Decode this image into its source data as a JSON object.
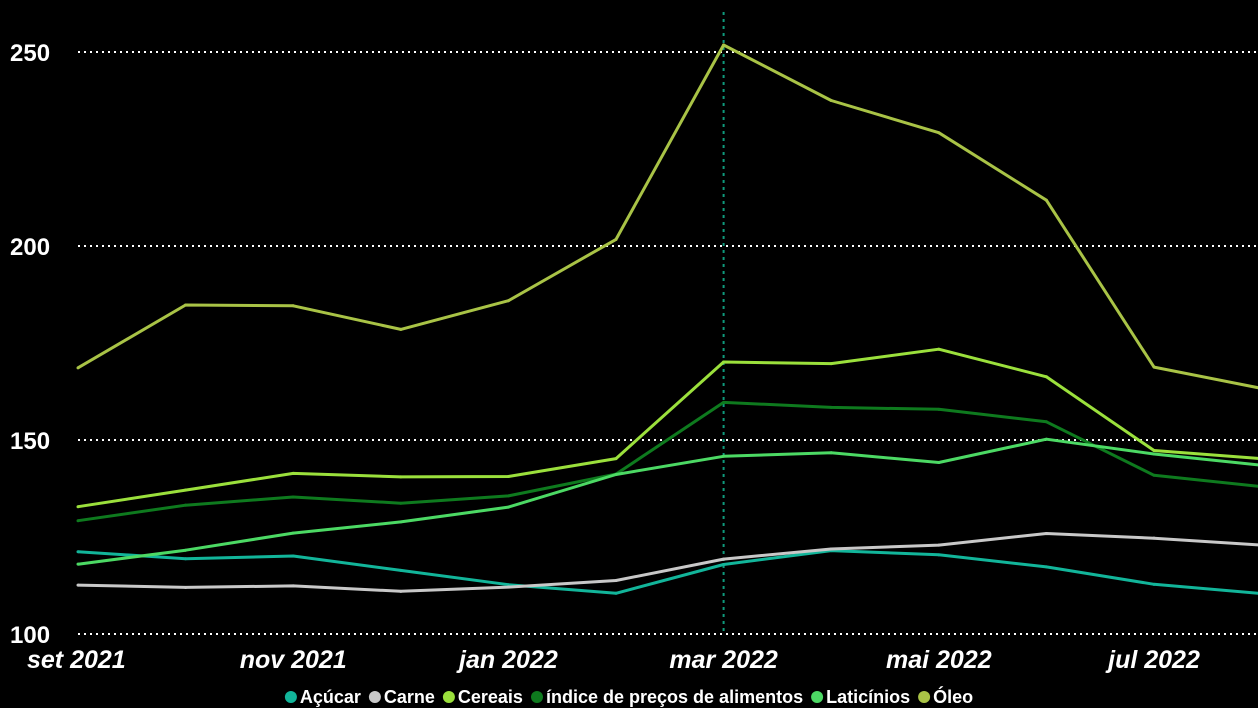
{
  "chart_data": {
    "type": "line",
    "x": [
      "set 2021",
      "out 2021",
      "nov 2021",
      "dez 2021",
      "jan 2022",
      "fev 2022",
      "mar 2022",
      "abr 2022",
      "mai 2022",
      "jun 2022",
      "jul 2022",
      "ago 2022"
    ],
    "x_tick_labels": [
      "set 2021",
      "nov 2021",
      "jan 2022",
      "mar 2022",
      "mai 2022",
      "jul 2022"
    ],
    "y_ticks": [
      100,
      150,
      200,
      250
    ],
    "ylim": [
      100,
      252
    ],
    "grid": "horizontal dotted",
    "reference_line": "mar 2022",
    "legend_position": "bottom",
    "series": [
      {
        "name": "Açúcar",
        "color": "#12b59a",
        "values": [
          121.2,
          119.4,
          120.1,
          116.4,
          112.7,
          110.5,
          117.9,
          121.5,
          120.4,
          117.3,
          112.8,
          110.4
        ]
      },
      {
        "name": "Carne",
        "color": "#c8c8c8",
        "values": [
          112.6,
          112.0,
          112.4,
          111.0,
          112.1,
          113.8,
          119.3,
          121.9,
          122.9,
          125.9,
          124.7,
          122.9
        ]
      },
      {
        "name": "Cereais",
        "color": "#9be03c",
        "values": [
          132.8,
          137.1,
          141.4,
          140.5,
          140.6,
          145.2,
          170.1,
          169.7,
          173.4,
          166.3,
          147.3,
          145.2
        ]
      },
      {
        "name": "índice de preços de alimentos",
        "color": "#0e7a1e",
        "values": [
          129.2,
          133.2,
          135.3,
          133.7,
          135.6,
          141.2,
          159.7,
          158.4,
          157.9,
          154.7,
          140.9,
          138.0
        ]
      },
      {
        "name": "Laticínios",
        "color": "#4cd964",
        "values": [
          118.0,
          121.6,
          126.0,
          128.9,
          132.7,
          141.1,
          145.8,
          146.7,
          144.2,
          150.2,
          146.4,
          143.5
        ]
      },
      {
        "name": "Óleo",
        "color": "#a9c346",
        "values": [
          168.6,
          184.8,
          184.6,
          178.5,
          185.9,
          201.7,
          251.8,
          237.5,
          229.2,
          211.8,
          168.8,
          163.3
        ]
      }
    ]
  }
}
